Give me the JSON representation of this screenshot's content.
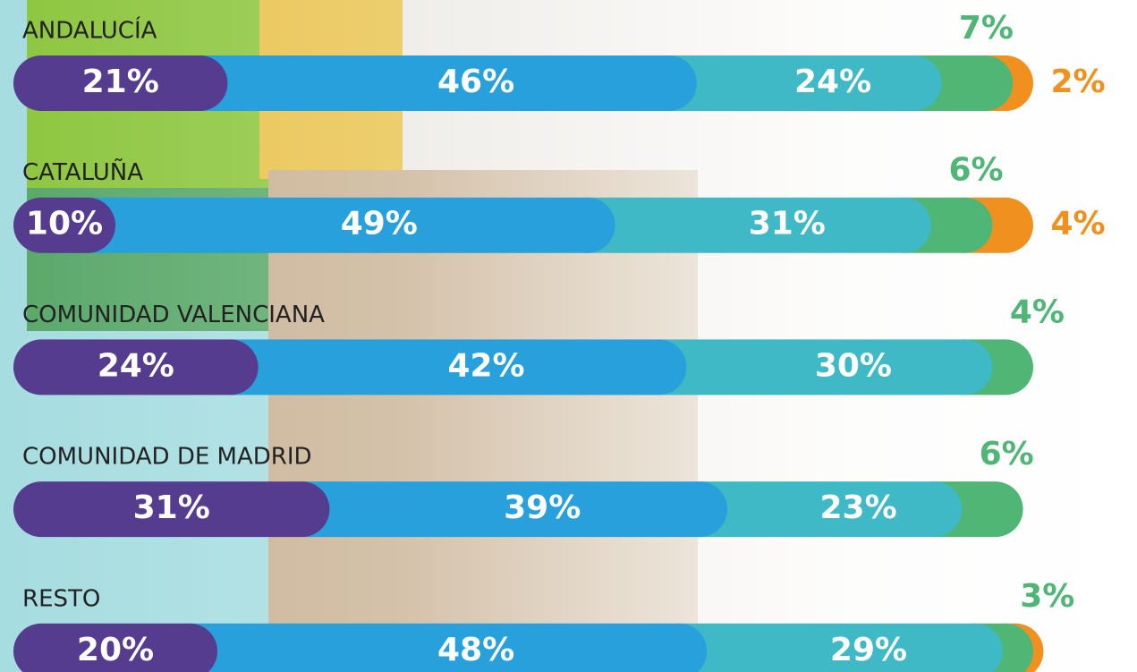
{
  "chart_data": {
    "type": "stacked-bar",
    "categories": [
      "ANDALUCÍA",
      "CATALUÑA",
      "COMUNIDAD VALENCIANA",
      "COMUNIDAD DE MADRID",
      "RESTO"
    ],
    "series": [
      {
        "color": "#553c8f",
        "values": [
          21,
          10,
          24,
          31,
          20
        ],
        "value_labels": [
          "21%",
          "10%",
          "24%",
          "31%",
          "20%"
        ]
      },
      {
        "color": "#27a0db",
        "values": [
          46,
          49,
          42,
          39,
          48
        ],
        "value_labels": [
          "46%",
          "49%",
          "42%",
          "39%",
          "48%"
        ]
      },
      {
        "color": "#3fb9c5",
        "values": [
          24,
          31,
          30,
          23,
          29
        ],
        "value_labels": [
          "24%",
          "31%",
          "30%",
          "23%",
          "29%"
        ]
      },
      {
        "color": "#4fb676",
        "values": [
          7,
          6,
          4,
          6,
          3
        ],
        "value_labels": [
          "7%",
          "6%",
          "4%",
          "6%",
          "3%"
        ]
      },
      {
        "color": "#f0901e",
        "values": [
          2,
          4,
          null,
          null,
          1
        ],
        "value_labels": [
          "2%",
          "4%",
          null,
          null,
          null
        ]
      }
    ]
  }
}
